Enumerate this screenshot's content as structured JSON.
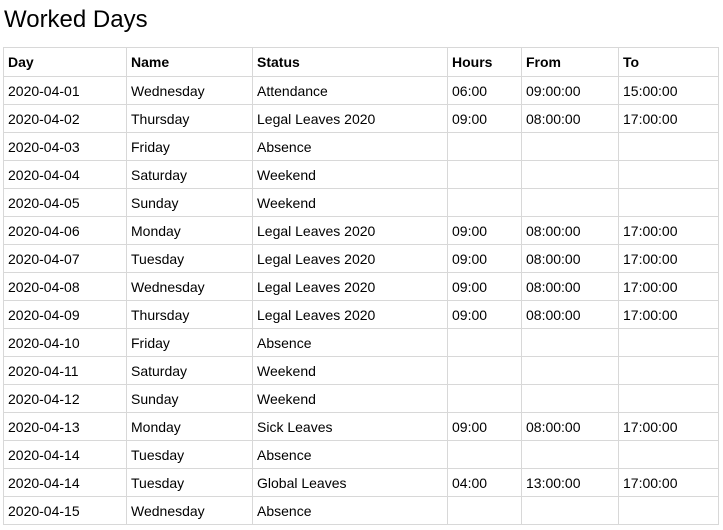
{
  "page": {
    "title": "Worked Days"
  },
  "table": {
    "headers": {
      "day": "Day",
      "name": "Name",
      "status": "Status",
      "hours": "Hours",
      "from": "From",
      "to": "To"
    },
    "rows": [
      {
        "day": "2020-04-01",
        "name": "Wednesday",
        "status": "Attendance",
        "hours": "06:00",
        "from": "09:00:00",
        "to": "15:00:00"
      },
      {
        "day": "2020-04-02",
        "name": "Thursday",
        "status": "Legal Leaves 2020",
        "hours": "09:00",
        "from": "08:00:00",
        "to": "17:00:00"
      },
      {
        "day": "2020-04-03",
        "name": "Friday",
        "status": "Absence",
        "hours": "",
        "from": "",
        "to": ""
      },
      {
        "day": "2020-04-04",
        "name": "Saturday",
        "status": "Weekend",
        "hours": "",
        "from": "",
        "to": ""
      },
      {
        "day": "2020-04-05",
        "name": "Sunday",
        "status": "Weekend",
        "hours": "",
        "from": "",
        "to": ""
      },
      {
        "day": "2020-04-06",
        "name": "Monday",
        "status": "Legal Leaves 2020",
        "hours": "09:00",
        "from": "08:00:00",
        "to": "17:00:00"
      },
      {
        "day": "2020-04-07",
        "name": "Tuesday",
        "status": "Legal Leaves 2020",
        "hours": "09:00",
        "from": "08:00:00",
        "to": "17:00:00"
      },
      {
        "day": "2020-04-08",
        "name": "Wednesday",
        "status": "Legal Leaves 2020",
        "hours": "09:00",
        "from": "08:00:00",
        "to": "17:00:00"
      },
      {
        "day": "2020-04-09",
        "name": "Thursday",
        "status": "Legal Leaves 2020",
        "hours": "09:00",
        "from": "08:00:00",
        "to": "17:00:00"
      },
      {
        "day": "2020-04-10",
        "name": "Friday",
        "status": "Absence",
        "hours": "",
        "from": "",
        "to": ""
      },
      {
        "day": "2020-04-11",
        "name": "Saturday",
        "status": "Weekend",
        "hours": "",
        "from": "",
        "to": ""
      },
      {
        "day": "2020-04-12",
        "name": "Sunday",
        "status": "Weekend",
        "hours": "",
        "from": "",
        "to": ""
      },
      {
        "day": "2020-04-13",
        "name": "Monday",
        "status": "Sick Leaves",
        "hours": "09:00",
        "from": "08:00:00",
        "to": "17:00:00"
      },
      {
        "day": "2020-04-14",
        "name": "Tuesday",
        "status": "Absence",
        "hours": "",
        "from": "",
        "to": ""
      },
      {
        "day": "2020-04-14",
        "name": "Tuesday",
        "status": "Global Leaves",
        "hours": "04:00",
        "from": "13:00:00",
        "to": "17:00:00"
      },
      {
        "day": "2020-04-15",
        "name": "Wednesday",
        "status": "Absence",
        "hours": "",
        "from": "",
        "to": ""
      }
    ]
  }
}
